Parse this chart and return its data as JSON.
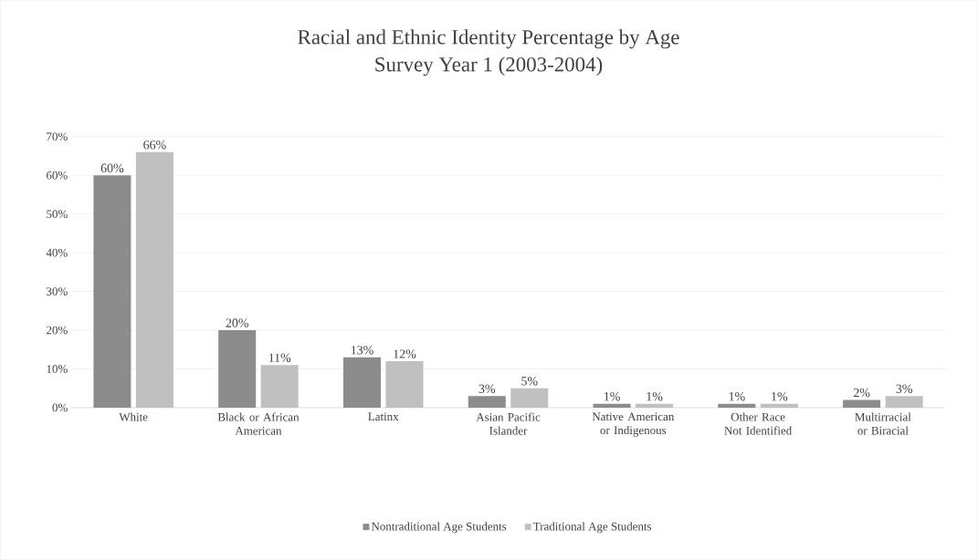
{
  "chart_data": {
    "type": "bar",
    "title": "Racial and Ethnic Identity Percentage by Age",
    "subtitle": "Survey Year 1 (2003-2004)",
    "categories": [
      "White",
      "Black or African American",
      "Latinx",
      "Asian Pacific Islander",
      "Native American or Indigenous",
      "Other Race Not Identified",
      "Multirracial or Biracial"
    ],
    "series": [
      {
        "name": "Nontraditional Age Students",
        "color": "#8c8c8c",
        "values": [
          60,
          20,
          13,
          3,
          1,
          1,
          2
        ],
        "value_labels": [
          "60%",
          "20%",
          "13%",
          "3%",
          "1%",
          "1%",
          "2%"
        ]
      },
      {
        "name": "Traditional Age Students",
        "color": "#c0c0c0",
        "values": [
          66,
          11,
          12,
          5,
          1,
          1,
          3
        ],
        "value_labels": [
          "66%",
          "11%",
          "12%",
          "5%",
          "1%",
          "1%",
          "3%"
        ]
      }
    ],
    "ylim": [
      0,
      70
    ],
    "yticks": [
      {
        "value": 0,
        "label": "0%"
      },
      {
        "value": 10,
        "label": "10%"
      },
      {
        "value": 20,
        "label": "20%"
      },
      {
        "value": 30,
        "label": "30%"
      },
      {
        "value": 40,
        "label": "40%"
      },
      {
        "value": 50,
        "label": "50%"
      },
      {
        "value": 60,
        "label": "60%"
      },
      {
        "value": 70,
        "label": "70%"
      }
    ],
    "grid": "y",
    "legend": "bottom"
  }
}
